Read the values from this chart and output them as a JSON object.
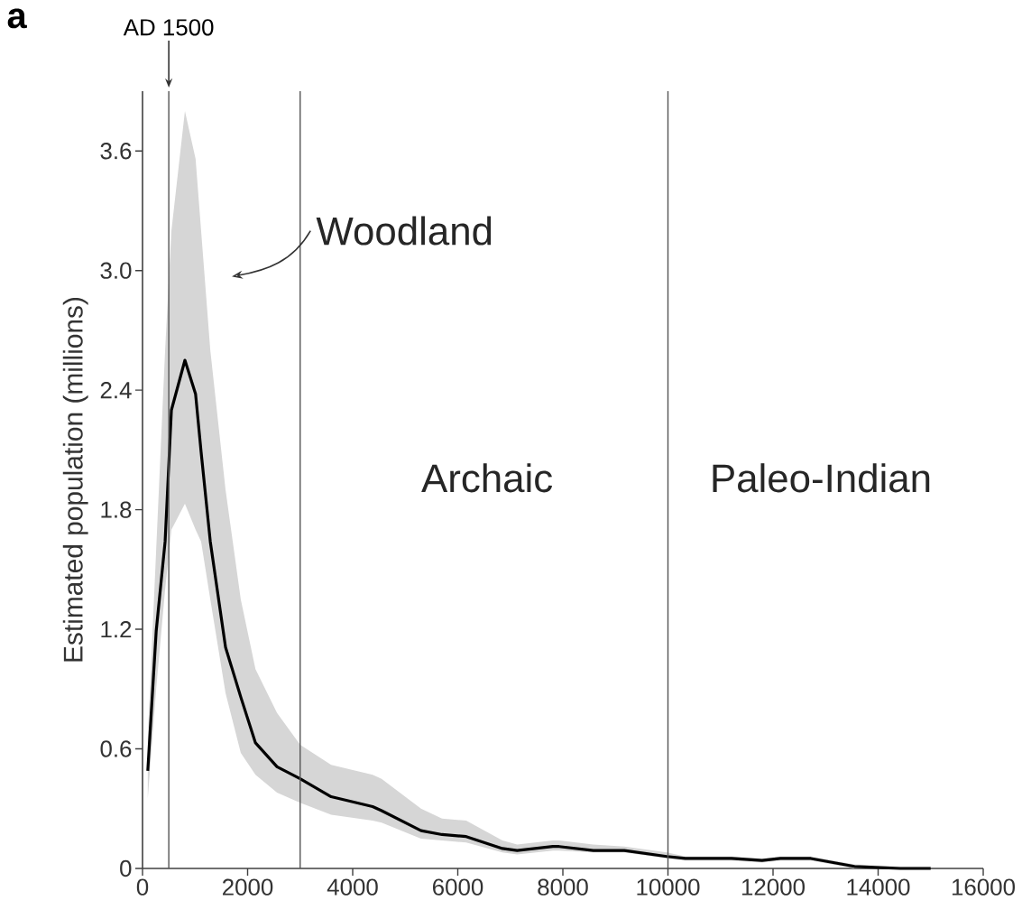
{
  "chart_data": {
    "type": "line",
    "title": "a",
    "ylabel": "Estimated population (millions)",
    "x": [
      100,
      260,
      430,
      550,
      807,
      1010,
      1115,
      1290,
      1580,
      1870,
      2150,
      2560,
      3000,
      3590,
      4380,
      4550,
      5300,
      5700,
      6160,
      6850,
      7130,
      7810,
      7930,
      8580,
      9170,
      9980,
      10330,
      11210,
      11790,
      12140,
      12720,
      13550,
      14420,
      15000
    ],
    "series": [
      {
        "color": "#000000",
        "values": [
          0.49,
          1.19,
          1.64,
          2.3,
          2.55,
          2.38,
          2.09,
          1.64,
          1.11,
          0.86,
          0.63,
          0.51,
          0.45,
          0.36,
          0.31,
          0.29,
          0.19,
          0.17,
          0.16,
          0.1,
          0.09,
          0.11,
          0.11,
          0.09,
          0.09,
          0.06,
          0.05,
          0.05,
          0.04,
          0.05,
          0.05,
          0.01,
          0,
          0
        ],
        "lower": [
          0.35,
          0.9,
          1.4,
          1.7,
          1.83,
          1.7,
          1.64,
          1.35,
          0.88,
          0.58,
          0.47,
          0.38,
          0.33,
          0.27,
          0.24,
          0.23,
          0.15,
          0.14,
          0.13,
          0.08,
          0.07,
          0.09,
          0.09,
          0.08,
          0.08,
          0.05,
          0.04,
          0.04,
          0.03,
          0.04,
          0.04,
          0,
          0,
          0
        ],
        "upper": [
          0.65,
          1.6,
          2.6,
          3.2,
          3.8,
          3.56,
          3.2,
          2.6,
          1.9,
          1.35,
          1.0,
          0.78,
          0.62,
          0.52,
          0.47,
          0.45,
          0.3,
          0.25,
          0.24,
          0.14,
          0.12,
          0.14,
          0.14,
          0.12,
          0.11,
          0.08,
          0.06,
          0.06,
          0.05,
          0.06,
          0.06,
          0.02,
          0.01,
          0.01
        ]
      }
    ],
    "xlim": [
      0,
      16000
    ],
    "ylim": [
      0,
      3.9
    ],
    "xticks": [
      0,
      2000,
      4000,
      6000,
      8000,
      10000,
      12000,
      14000,
      16000
    ],
    "yticks": [
      0,
      0.6,
      1.2,
      1.8,
      2.4,
      {
        "value": 3,
        "label": "3.0"
      },
      3.6
    ],
    "ref_lines": [
      {
        "axis": "x",
        "value": 500,
        "label": "AD 1500",
        "color": "#555555"
      },
      {
        "axis": "x",
        "value": 3000,
        "color": "#555555"
      },
      {
        "axis": "x",
        "value": 10000,
        "color": "#555555"
      }
    ],
    "annotations": [
      "Woodland",
      "Archaic",
      "Paleo-Indian"
    ]
  }
}
